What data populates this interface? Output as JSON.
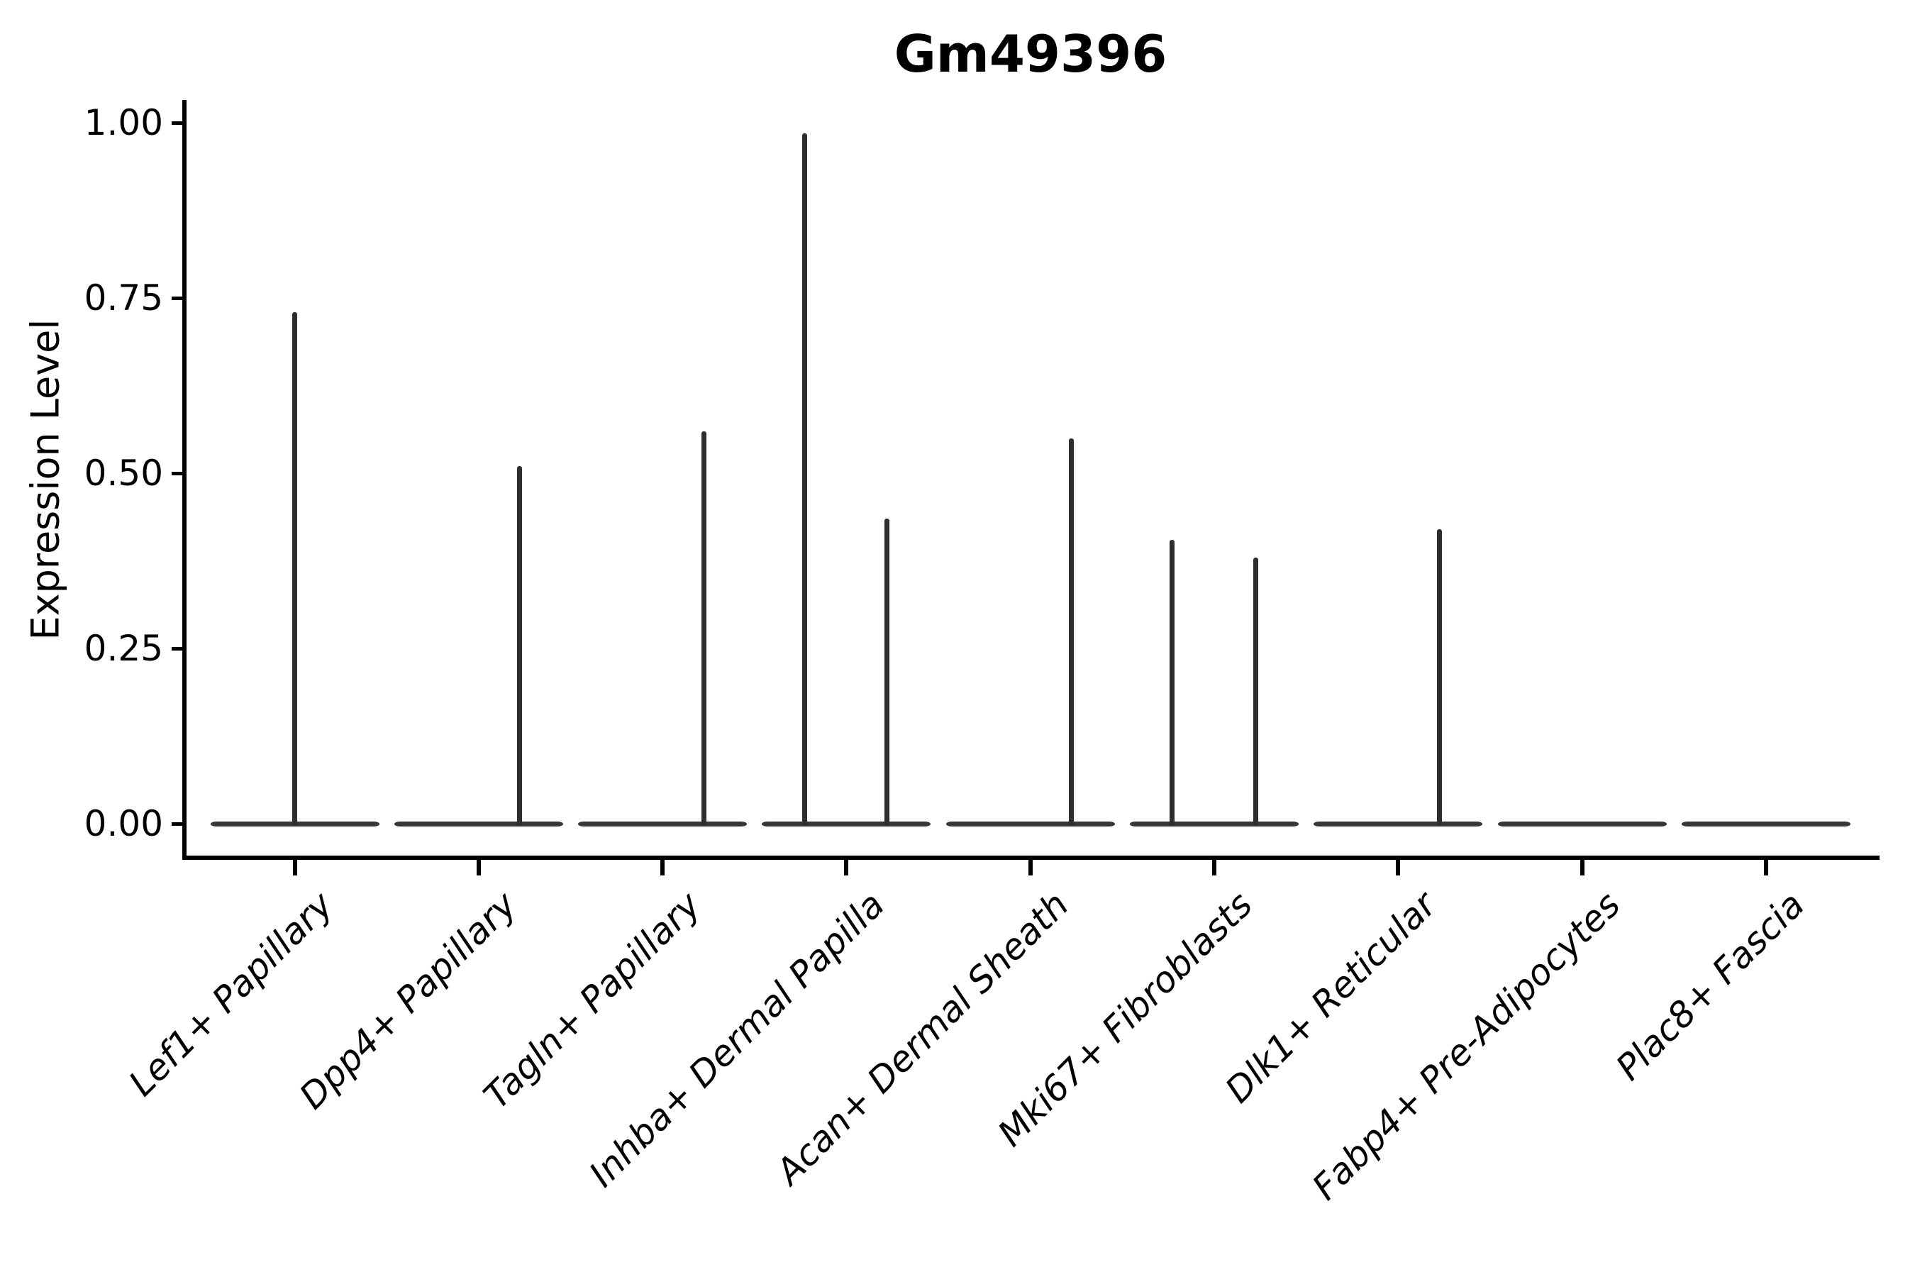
{
  "title": "Gm49396",
  "colors": {
    "ink": "#000000",
    "violin_spike": "#2e2e2e",
    "violin_base": "#373737",
    "background": "#ffffff"
  },
  "chart_data": {
    "type": "violin",
    "title": "Gm49396",
    "xlabel": "",
    "ylabel": "Expression Level",
    "ylim": [
      -0.05,
      1.03
    ],
    "yticks": [
      0.0,
      0.25,
      0.5,
      0.75,
      1.0
    ],
    "ytick_labels": [
      "0.00",
      "0.25",
      "0.50",
      "0.75",
      "1.00"
    ],
    "grid": false,
    "legend": false,
    "categories": [
      "Lef1+ Papillary",
      "Dpp4+ Papillary",
      "Tagln+ Papillary",
      "Inhba+ Dermal Papilla",
      "Acan+ Dermal Sheath",
      "Mki67+ Fibroblasts",
      "Dlk1+ Reticular",
      "Fabp4+ Pre-Adipocytes",
      "Plac8+ Fascia"
    ],
    "violins": [
      {
        "category": "Lef1+ Papillary",
        "base_value": 0,
        "spikes": [
          {
            "pos": 0.0,
            "value": 0.73
          }
        ]
      },
      {
        "category": "Dpp4+ Papillary",
        "base_value": 0,
        "spikes": [
          {
            "pos": 0.224,
            "value": 0.51
          }
        ]
      },
      {
        "category": "Tagln+ Papillary",
        "base_value": 0,
        "spikes": [
          {
            "pos": 0.224,
            "value": 0.56
          }
        ]
      },
      {
        "category": "Inhba+ Dermal Papilla",
        "base_value": 0,
        "spikes": [
          {
            "pos": -0.228,
            "value": 0.985
          },
          {
            "pos": 0.22,
            "value": 0.435
          }
        ]
      },
      {
        "category": "Acan+ Dermal Sheath",
        "base_value": 0,
        "spikes": [
          {
            "pos": 0.224,
            "value": 0.55
          }
        ]
      },
      {
        "category": "Mki67+ Fibroblasts",
        "base_value": 0,
        "spikes": [
          {
            "pos": -0.228,
            "value": 0.405
          },
          {
            "pos": 0.224,
            "value": 0.38
          }
        ]
      },
      {
        "category": "Dlk1+ Reticular",
        "base_value": 0,
        "spikes": [
          {
            "pos": 0.224,
            "value": 0.42
          }
        ]
      },
      {
        "category": "Fabp4+ Pre-Adipocytes",
        "base_value": 0,
        "spikes": []
      },
      {
        "category": "Plac8+ Fascia",
        "base_value": 0,
        "spikes": []
      }
    ]
  }
}
